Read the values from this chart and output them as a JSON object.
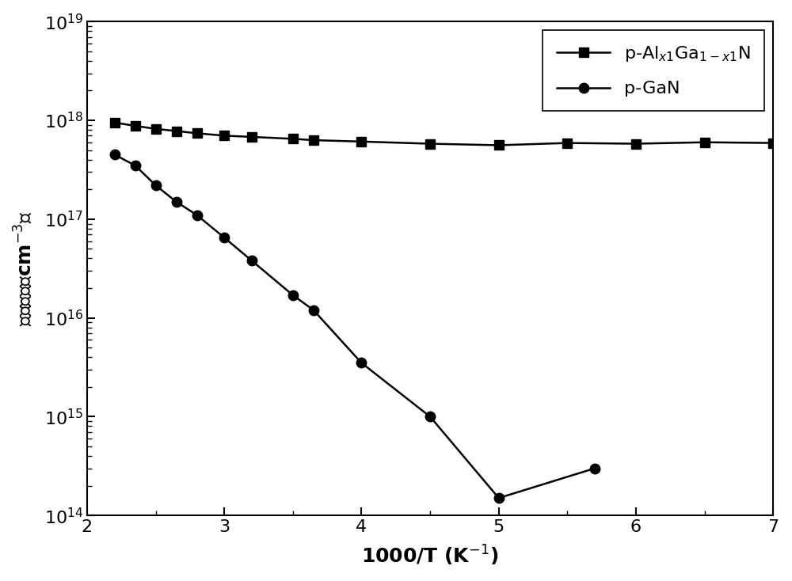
{
  "algan_x": [
    2.2,
    2.35,
    2.5,
    2.65,
    2.8,
    3.0,
    3.2,
    3.5,
    3.65,
    4.0,
    4.5,
    5.0,
    5.5,
    6.0,
    6.5,
    7.0
  ],
  "algan_y": [
    9.5e+17,
    8.8e+17,
    8.2e+17,
    7.8e+17,
    7.4e+17,
    7e+17,
    6.8e+17,
    6.5e+17,
    6.3e+17,
    6.1e+17,
    5.8e+17,
    5.6e+17,
    5.9e+17,
    5.8e+17,
    6e+17,
    5.9e+17
  ],
  "gan_x": [
    2.2,
    2.35,
    2.5,
    2.65,
    2.8,
    3.0,
    3.2,
    3.5,
    3.65,
    4.0,
    4.5,
    5.0,
    5.7
  ],
  "gan_y": [
    4.5e+17,
    3.5e+17,
    2.2e+17,
    1.5e+17,
    1.1e+17,
    6.5e+16,
    3.8e+16,
    1.7e+16,
    1.2e+16,
    3500000000000000.0,
    1000000000000000.0,
    150000000000000.0,
    300000000000000.0
  ],
  "xlabel": "1000/T (K$^{-1}$)",
  "ylabel_chinese": "空穴浓度（cm$^{-3}$）",
  "xlim": [
    2.0,
    7.0
  ],
  "ylim_log": [
    14,
    19
  ],
  "line_color": "black",
  "marker_square": "s",
  "marker_circle": "o",
  "markersize": 9,
  "linewidth": 1.8,
  "legend_algan": "p-Al$_{x1}$Ga$_{1-x1}$N",
  "legend_gan": "p-GaN",
  "background_color": "#ffffff",
  "legend_fontsize": 16,
  "tick_fontsize": 16,
  "label_fontsize": 18
}
